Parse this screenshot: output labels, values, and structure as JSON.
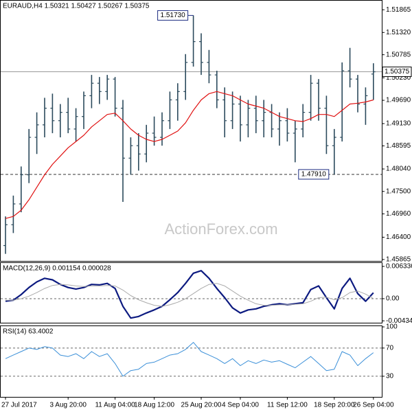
{
  "chart_data": [
    {
      "type": "ohlc",
      "title": "EURAUD,H4  1.50321 1.50427 1.50267 1.50375",
      "watermark": "ActionForex.com",
      "categories": [
        "27 Jul 2017",
        null,
        null,
        null,
        null,
        null,
        null,
        null,
        "3 Aug 20:00",
        null,
        null,
        null,
        null,
        null,
        "11 Aug 04:00",
        null,
        null,
        null,
        null,
        "18 Aug 12:00",
        null,
        null,
        null,
        null,
        null,
        "25 Aug 20:00",
        null,
        null,
        null,
        null,
        "4 Sep 04:00",
        null,
        null,
        null,
        null,
        null,
        "11 Sep 12:00",
        null,
        null,
        null,
        null,
        null,
        "18 Sep 20:00",
        null,
        null,
        null,
        null,
        "26 Sep 04:00"
      ],
      "open": [
        1.462,
        1.467,
        1.472,
        1.479,
        1.488,
        1.491,
        1.495,
        1.492,
        1.494,
        1.49,
        1.493,
        1.498,
        1.501,
        1.499,
        1.502,
        1.495,
        1.483,
        1.486,
        1.484,
        1.489,
        1.488,
        1.492,
        1.497,
        1.499,
        1.506,
        1.511,
        1.506,
        1.503,
        1.497,
        1.492,
        1.496,
        1.491,
        1.495,
        1.492,
        1.494,
        1.49,
        1.492,
        1.489,
        1.49,
        1.494,
        1.501,
        1.495,
        1.486,
        1.488,
        1.504,
        1.502,
        1.496,
        1.50321
      ],
      "high": [
        1.469,
        1.474,
        1.481,
        1.49,
        1.494,
        1.4975,
        1.4985,
        1.496,
        1.4975,
        1.495,
        1.499,
        1.503,
        1.5025,
        1.503,
        1.5025,
        1.497,
        1.488,
        1.489,
        1.491,
        1.493,
        1.494,
        1.499,
        1.501,
        1.508,
        1.5173,
        1.513,
        1.509,
        1.504,
        1.5,
        1.499,
        1.498,
        1.497,
        1.498,
        1.497,
        1.496,
        1.494,
        1.495,
        1.492,
        1.496,
        1.503,
        1.502,
        1.498,
        1.49,
        1.506,
        1.5095,
        1.503,
        1.5,
        1.5058
      ],
      "low": [
        1.46,
        1.465,
        1.47,
        1.477,
        1.484,
        1.488,
        1.489,
        1.488,
        1.489,
        1.487,
        1.49,
        1.495,
        1.496,
        1.497,
        1.493,
        1.4725,
        1.479,
        1.48,
        1.482,
        1.486,
        1.486,
        1.49,
        1.492,
        1.497,
        1.505,
        1.503,
        1.501,
        1.495,
        1.488,
        1.49,
        1.487,
        1.488,
        1.489,
        1.488,
        1.488,
        1.486,
        1.487,
        1.482,
        1.488,
        1.492,
        1.492,
        1.484,
        1.4791,
        1.487,
        1.5,
        1.494,
        1.491,
        1.497
      ],
      "close": [
        1.467,
        1.472,
        1.479,
        1.488,
        1.491,
        1.495,
        1.492,
        1.494,
        1.49,
        1.493,
        1.498,
        1.501,
        1.499,
        1.502,
        1.495,
        1.483,
        1.486,
        1.484,
        1.489,
        1.488,
        1.492,
        1.497,
        1.499,
        1.506,
        1.511,
        1.506,
        1.503,
        1.497,
        1.492,
        1.496,
        1.491,
        1.495,
        1.492,
        1.494,
        1.49,
        1.492,
        1.489,
        1.49,
        1.494,
        1.501,
        1.495,
        1.486,
        1.488,
        1.504,
        1.502,
        1.496,
        1.498,
        1.50375
      ],
      "color": "#2b4a5c",
      "ma_values": [
        1.4685,
        1.469,
        1.4705,
        1.473,
        1.476,
        1.479,
        1.4815,
        1.4835,
        1.4855,
        1.487,
        1.4885,
        1.4905,
        1.492,
        1.4935,
        1.4938,
        1.492,
        1.49,
        1.4885,
        1.4875,
        1.487,
        1.4875,
        1.4885,
        1.4895,
        1.4915,
        1.4945,
        1.497,
        1.4985,
        1.499,
        1.4985,
        1.498,
        1.497,
        1.496,
        1.4955,
        1.495,
        1.494,
        1.493,
        1.4925,
        1.492,
        1.4918,
        1.4925,
        1.4935,
        1.4935,
        1.493,
        1.4945,
        1.496,
        1.4962,
        1.4965,
        1.497
      ],
      "ma_color": "#e01010",
      "ylim": [
        1.4583,
        1.521
      ],
      "yticks": [
        1.51865,
        {
          "value": 1.5132,
          "label": "1.51320"
        },
        1.50785,
        {
          "value": 1.5023,
          "label": "1.50230"
        },
        {
          "value": 1.4969,
          "label": "1.49690"
        },
        {
          "value": 1.4913,
          "label": "1.49130"
        },
        1.48595,
        {
          "value": 1.4804,
          "label": "1.48040"
        },
        {
          "value": 1.475,
          "label": "1.47500"
        },
        {
          "value": 1.4696,
          "label": "1.46960"
        },
        {
          "value": 1.464,
          "label": "1.46400"
        },
        1.45865
      ],
      "current": {
        "value": 1.50375,
        "label": "1.50375"
      },
      "peak": {
        "value": 1.5173,
        "label": "1.51730"
      },
      "support": {
        "value": 1.4791,
        "label": "1.47910"
      }
    },
    {
      "type": "line",
      "title": "MACD(12,26,9) 0.001154 0.000028",
      "series": [
        {
          "color": "#0c1a80",
          "values": [
            -0.0005,
            -0.0003,
            0.0008,
            0.0022,
            0.0033,
            0.004,
            0.0037,
            0.0028,
            0.0022,
            0.0019,
            0.0022,
            0.0028,
            0.0027,
            0.003,
            0.002,
            -0.0015,
            -0.0038,
            -0.0035,
            -0.0028,
            -0.0022,
            -0.0015,
            -0.0002,
            0.0012,
            0.003,
            0.005,
            0.0055,
            0.004,
            0.002,
            0.0002,
            -0.0018,
            -0.0028,
            -0.0022,
            -0.002,
            -0.0015,
            -0.0012,
            -0.001,
            -0.0012,
            -0.001,
            -0.0008,
            0.0018,
            0.0025,
            0.0002,
            -0.002,
            0.002,
            0.004,
            0.001,
            -0.0005,
            0.001154
          ]
        },
        {
          "color": "#aaaaaa",
          "values": [
            -0.0003,
            -0.0003,
            0.0,
            0.0005,
            0.0012,
            0.002,
            0.0026,
            0.0028,
            0.0027,
            0.0025,
            0.0024,
            0.0025,
            0.0025,
            0.0026,
            0.0025,
            0.0017,
            0.0006,
            -0.0002,
            -0.0008,
            -0.0013,
            -0.0015,
            -0.0012,
            -0.0007,
            0.0,
            0.001,
            0.002,
            0.0028,
            0.003,
            0.0025,
            0.0015,
            0.0005,
            -0.0003,
            -0.001,
            -0.0013,
            -0.0013,
            -0.0012,
            -0.0012,
            -0.0011,
            -0.001,
            -0.0005,
            0.0002,
            0.0003,
            -0.0002,
            0.0002,
            0.0012,
            0.0015,
            0.0009,
            2.8e-05
          ]
        }
      ],
      "ylim": [
        -0.00472,
        0.00714
      ],
      "yticks": [
        0.006336,
        {
          "value": 0,
          "label": "0.00"
        },
        -0.004347
      ],
      "dashed_levels": [
        0
      ]
    },
    {
      "type": "line",
      "title": "RSI(14) 63.4002",
      "series": [
        {
          "color": "#3a8fd8",
          "values": [
            55,
            60,
            65,
            70,
            68,
            72,
            70,
            60,
            58,
            62,
            55,
            65,
            58,
            62,
            48,
            30,
            38,
            40,
            48,
            50,
            55,
            60,
            62,
            68,
            78,
            65,
            60,
            55,
            48,
            55,
            45,
            52,
            48,
            53,
            50,
            52,
            47,
            42,
            50,
            58,
            48,
            38,
            40,
            65,
            60,
            45,
            55,
            63.4002
          ]
        }
      ],
      "ylim": [
        0.7,
        102
      ],
      "yticks": [
        100,
        70,
        30
      ],
      "dashed_levels": [
        70,
        30
      ]
    }
  ]
}
